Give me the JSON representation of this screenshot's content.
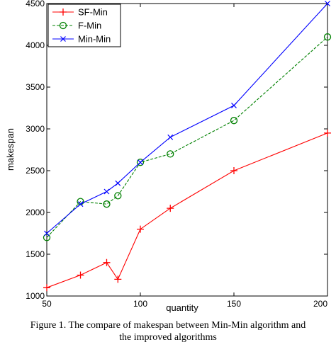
{
  "chart_data": {
    "type": "line",
    "title": "",
    "xlabel": "quantity",
    "ylabel": "makespan",
    "xlim": [
      50,
      200
    ],
    "ylim": [
      1000,
      4500
    ],
    "x_ticks": [
      50,
      100,
      150,
      200
    ],
    "y_ticks": [
      1000,
      1500,
      2000,
      2500,
      3000,
      3500,
      4000,
      4500
    ],
    "grid": false,
    "legend_position": "top-left",
    "series": [
      {
        "name": "SF-Min",
        "color": "#ff0000",
        "marker": "plus",
        "x": [
          50,
          68,
          82,
          88,
          100,
          116,
          150,
          200
        ],
        "y": [
          1100,
          1250,
          1400,
          1200,
          1800,
          2050,
          2500,
          2950
        ]
      },
      {
        "name": "F-Min",
        "color": "#008000",
        "marker": "circle",
        "dash": true,
        "x": [
          50,
          68,
          82,
          88,
          100,
          116,
          150,
          200
        ],
        "y": [
          1700,
          2130,
          2100,
          2200,
          2600,
          2700,
          3100,
          4100
        ]
      },
      {
        "name": "Min-Min",
        "color": "#0000ff",
        "marker": "x",
        "x": [
          50,
          68,
          82,
          88,
          100,
          116,
          150,
          200
        ],
        "y": [
          1750,
          2100,
          2250,
          2350,
          2600,
          2900,
          3280,
          4500
        ]
      }
    ]
  },
  "caption": {
    "line1": "Figure 1.    The compare of makespan between Min-Min   algorithm and",
    "line2": "the improved algorithms"
  }
}
